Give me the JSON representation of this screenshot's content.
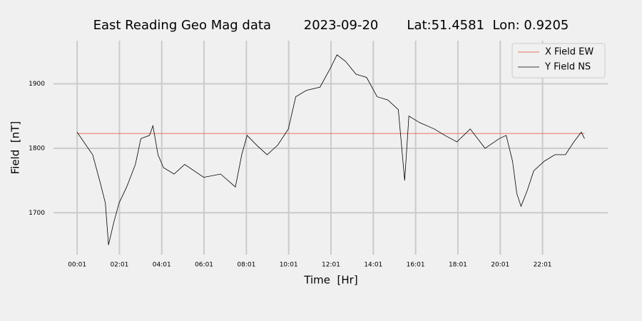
{
  "chart_data": {
    "type": "line",
    "title": "East Reading Geo Mag data        2023-09-20       Lat:51.4581  Lon: 0.9205",
    "x_label": "Time  [Hr]",
    "y_label": "Field  [nT]",
    "xlim": [
      -1.1,
      25.1
    ],
    "ylim": [
      1635,
      1967
    ],
    "xticks": [
      {
        "value": 0.0167,
        "label": "00:01"
      },
      {
        "value": 2.0167,
        "label": "02:01"
      },
      {
        "value": 4.0167,
        "label": "04:01"
      },
      {
        "value": 6.0167,
        "label": "06:01"
      },
      {
        "value": 8.0167,
        "label": "08:01"
      },
      {
        "value": 10.0167,
        "label": "10:01"
      },
      {
        "value": 12.0167,
        "label": "12:01"
      },
      {
        "value": 14.0167,
        "label": "14:01"
      },
      {
        "value": 16.0167,
        "label": "16:01"
      },
      {
        "value": 18.0167,
        "label": "18:01"
      },
      {
        "value": 20.0167,
        "label": "20:01"
      },
      {
        "value": 22.0167,
        "label": "22:01"
      }
    ],
    "yticks": [
      1700,
      1800,
      1900
    ],
    "grid": true,
    "legend": "upper right",
    "series": [
      {
        "name": "X Field EW",
        "color": "#e24a33",
        "x": [
          0.0167,
          24
        ],
        "values": [
          1823,
          1823
        ]
      },
      {
        "name": "Y Field NS",
        "color": "#000000",
        "x": [
          0.0167,
          0.33,
          0.75,
          1.08,
          1.35,
          1.5,
          1.75,
          2.0,
          2.36,
          2.77,
          3.03,
          3.44,
          3.6,
          3.84,
          4.1,
          4.6,
          5.1,
          6.0,
          6.8,
          7.5,
          7.8,
          8.05,
          8.5,
          9.0,
          9.5,
          10.0,
          10.35,
          10.86,
          11.5,
          12.0,
          12.3,
          12.7,
          13.2,
          13.7,
          14.2,
          14.7,
          15.2,
          15.5,
          15.7,
          16.2,
          16.9,
          17.4,
          17.97,
          18.6,
          19.3,
          19.97,
          20.3,
          20.6,
          20.8,
          21.0,
          21.3,
          21.6,
          22.1,
          22.6,
          23.1,
          23.5,
          23.85,
          24.0
        ],
        "values": [
          1825,
          1810,
          1790,
          1750,
          1715,
          1650,
          1685,
          1715,
          1740,
          1775,
          1815,
          1820,
          1835,
          1790,
          1770,
          1760,
          1775,
          1755,
          1760,
          1740,
          1790,
          1820,
          1805,
          1790,
          1805,
          1830,
          1880,
          1890,
          1895,
          1925,
          1945,
          1935,
          1915,
          1910,
          1880,
          1875,
          1860,
          1750,
          1850,
          1840,
          1830,
          1820,
          1810,
          1830,
          1800,
          1815,
          1820,
          1780,
          1730,
          1710,
          1735,
          1765,
          1780,
          1790,
          1790,
          1810,
          1825,
          1815
        ]
      }
    ]
  }
}
